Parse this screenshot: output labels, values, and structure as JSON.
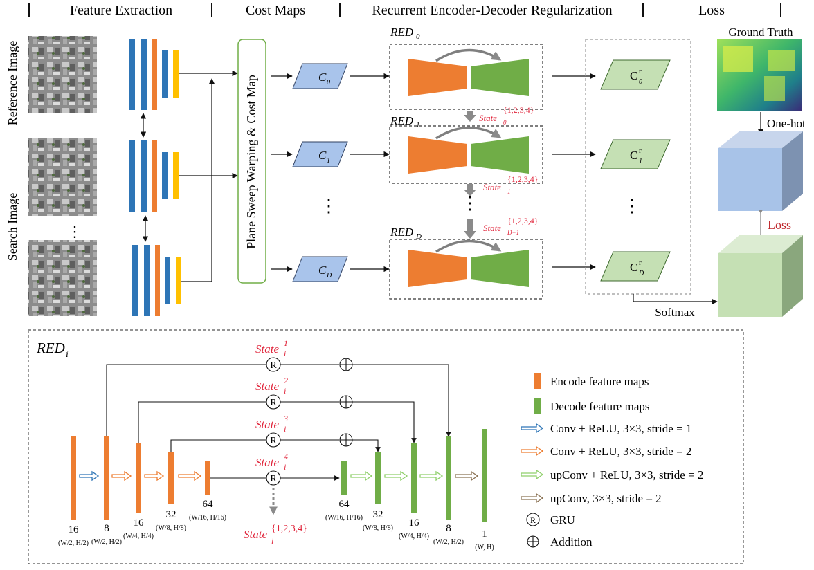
{
  "header": {
    "sections": [
      "Feature Extraction",
      "Cost Maps",
      "Recurrent Encoder-Decoder Regularization",
      "Loss"
    ]
  },
  "left": {
    "reference_label": "Reference Image",
    "search_label": "Search Image",
    "dots": "⋮"
  },
  "warp": {
    "label": "Plane Sweep Warping & Cost Map"
  },
  "cost_maps": {
    "c_letter": "C",
    "subs": [
      "0",
      "1",
      "D"
    ],
    "dots": "⋮"
  },
  "red_modules": {
    "prefix": "RED",
    "subs": [
      "0",
      "1",
      "D"
    ],
    "state_word": "State",
    "state_set": "{1,2,3,4}",
    "state_subs": [
      "0",
      "1",
      "D−1"
    ],
    "dots": "⋮"
  },
  "reg_maps": {
    "c_letter": "C",
    "sup": "r",
    "subs": [
      "0",
      "1",
      "D"
    ],
    "dots": "⋮"
  },
  "loss": {
    "ground_truth": "Ground Truth",
    "one_hot": "One-hot",
    "loss": "Loss",
    "softmax": "Softmax"
  },
  "detail": {
    "title_main": "RED",
    "title_sub": "i",
    "state_word": "State",
    "state_sub": "i",
    "state_sups": [
      "1",
      "2",
      "3",
      "4"
    ],
    "state_bottom_sup": "{1,2,3,4}",
    "gru_symbol": "R",
    "add_symbol": "⊕",
    "channels": [
      "16",
      "8",
      "16",
      "32",
      "64",
      "64",
      "32",
      "16",
      "8",
      "1"
    ],
    "sizes": [
      "(W/2, H/2)",
      "(W/2, H/2)",
      "(W/4, H/4)",
      "(W/8, H/8)",
      "(W/16, H/16)",
      "(W/16, H/16)",
      "(W/8, H/8)",
      "(W/4, H/4)",
      "(W/2, H/2)",
      "(W, H)"
    ]
  },
  "legend": {
    "items": [
      "Encode feature maps",
      "Decode feature maps",
      "Conv + ReLU, 3×3, stride = 1",
      "Conv + ReLU, 3×3, stride = 2",
      "upConv + ReLU, 3×3, stride = 2",
      "upConv, 3×3, stride = 2",
      "GRU",
      "Addition"
    ]
  },
  "colors": {
    "blue_bar": "#2e75b6",
    "orange": "#ed7d31",
    "yellow": "#ffc000",
    "green": "#70ad47",
    "cost_blue": "#a9c4eb",
    "reg_green": "#c5e0b4",
    "state_red": "#e0243a"
  }
}
